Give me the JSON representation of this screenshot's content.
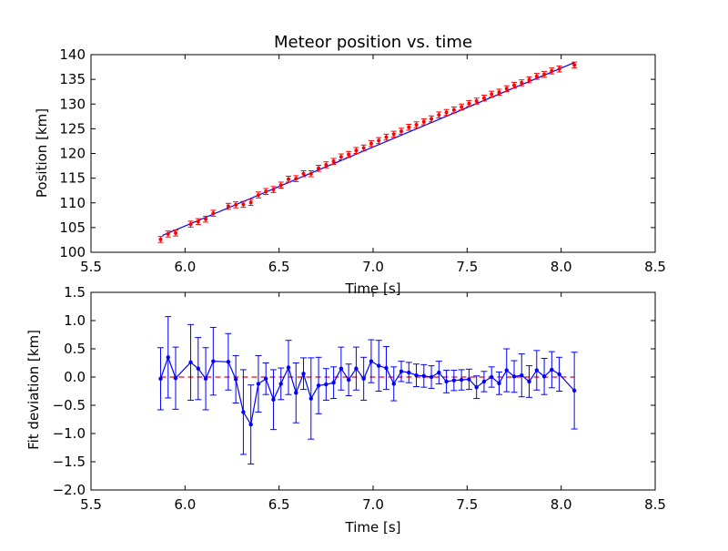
{
  "chart_data": [
    {
      "type": "scatter",
      "title": "Meteor position vs. time",
      "xlabel": "Time [s]",
      "ylabel": "Position [km]",
      "xlim": [
        5.5,
        8.5
      ],
      "ylim": [
        100,
        140
      ],
      "xticks": [
        "5.5",
        "6.0",
        "6.5",
        "7.0",
        "7.5",
        "8.0",
        "8.5"
      ],
      "yticks": [
        "100",
        "105",
        "110",
        "115",
        "120",
        "125",
        "130",
        "135",
        "140"
      ],
      "grid": false,
      "colors": {
        "points": "#ff0000",
        "fit": "#0000ff"
      },
      "fit_line": {
        "x": [
          5.88,
          8.07
        ],
        "y": [
          103.4,
          138.4
        ]
      },
      "x": [
        5.87,
        5.91,
        5.95,
        6.03,
        6.07,
        6.11,
        6.15,
        6.23,
        6.27,
        6.31,
        6.35,
        6.39,
        6.43,
        6.47,
        6.51,
        6.55,
        6.59,
        6.63,
        6.67,
        6.71,
        6.75,
        6.79,
        6.83,
        6.87,
        6.91,
        6.95,
        6.99,
        7.03,
        7.07,
        7.11,
        7.15,
        7.19,
        7.23,
        7.27,
        7.31,
        7.35,
        7.39,
        7.43,
        7.47,
        7.51,
        7.55,
        7.59,
        7.63,
        7.67,
        7.71,
        7.75,
        7.79,
        7.83,
        7.87,
        7.91,
        7.95,
        7.99,
        8.07
      ],
      "y": [
        102.6,
        103.7,
        103.9,
        105.7,
        106.2,
        106.7,
        107.9,
        109.3,
        109.6,
        109.7,
        110.1,
        111.6,
        112.3,
        112.7,
        113.6,
        114.8,
        114.9,
        115.9,
        115.9,
        117.0,
        117.7,
        118.4,
        119.3,
        119.8,
        120.6,
        121.1,
        122.0,
        122.6,
        123.3,
        123.9,
        124.5,
        125.3,
        125.8,
        126.4,
        127.0,
        127.8,
        128.3,
        128.8,
        129.4,
        130.1,
        130.6,
        131.2,
        132.0,
        132.4,
        133.1,
        133.8,
        134.3,
        134.9,
        135.6,
        136.0,
        136.7,
        137.1,
        137.9
      ],
      "y_error": 0.6
    },
    {
      "type": "line",
      "title": "",
      "xlabel": "Time [s]",
      "ylabel": "Fit deviation [km]",
      "xlim": [
        5.5,
        8.5
      ],
      "ylim": [
        -2.0,
        1.5
      ],
      "xticks": [
        "5.5",
        "6.0",
        "6.5",
        "7.0",
        "7.5",
        "8.0",
        "8.5"
      ],
      "yticks": [
        "−2.0",
        "−1.5",
        "−1.0",
        "−0.5",
        "0.0",
        "0.5",
        "1.0",
        "1.5"
      ],
      "grid": false,
      "reference_line": {
        "y": 0.0,
        "style": "dashed",
        "color": "#ff0000"
      },
      "colors": {
        "series": "#0000ff"
      },
      "x": [
        5.87,
        5.91,
        5.95,
        6.03,
        6.07,
        6.11,
        6.15,
        6.23,
        6.27,
        6.31,
        6.35,
        6.39,
        6.43,
        6.47,
        6.51,
        6.55,
        6.59,
        6.63,
        6.67,
        6.71,
        6.75,
        6.79,
        6.83,
        6.87,
        6.91,
        6.95,
        6.99,
        7.03,
        7.07,
        7.11,
        7.15,
        7.19,
        7.23,
        7.27,
        7.31,
        7.35,
        7.39,
        7.43,
        7.47,
        7.51,
        7.55,
        7.59,
        7.63,
        7.67,
        7.71,
        7.75,
        7.79,
        7.83,
        7.87,
        7.91,
        7.95,
        7.99,
        8.07
      ],
      "y": [
        -0.03,
        0.35,
        -0.02,
        0.26,
        0.15,
        -0.03,
        0.28,
        0.27,
        -0.04,
        -0.62,
        -0.84,
        -0.12,
        -0.03,
        -0.4,
        -0.12,
        0.17,
        -0.28,
        0.06,
        -0.38,
        -0.15,
        -0.13,
        -0.1,
        0.15,
        -0.05,
        0.15,
        -0.03,
        0.28,
        0.2,
        0.16,
        -0.12,
        0.1,
        0.08,
        0.03,
        0.02,
        0.0,
        0.08,
        -0.08,
        -0.06,
        -0.05,
        -0.04,
        -0.18,
        -0.08,
        0.0,
        -0.11,
        0.12,
        0.01,
        0.03,
        -0.08,
        0.12,
        0.01,
        0.13,
        0.05,
        -0.24
      ],
      "y_error": [
        0.55,
        0.72,
        0.55,
        0.67,
        0.55,
        0.55,
        0.6,
        0.5,
        0.42,
        0.75,
        0.7,
        0.5,
        0.28,
        0.53,
        0.28,
        0.48,
        0.53,
        0.28,
        0.72,
        0.5,
        0.28,
        0.28,
        0.38,
        0.28,
        0.38,
        0.38,
        0.38,
        0.45,
        0.38,
        0.3,
        0.18,
        0.18,
        0.2,
        0.2,
        0.2,
        0.2,
        0.2,
        0.18,
        0.18,
        0.18,
        0.2,
        0.18,
        0.18,
        0.2,
        0.38,
        0.28,
        0.38,
        0.28,
        0.35,
        0.32,
        0.32,
        0.3,
        0.68
      ]
    }
  ]
}
